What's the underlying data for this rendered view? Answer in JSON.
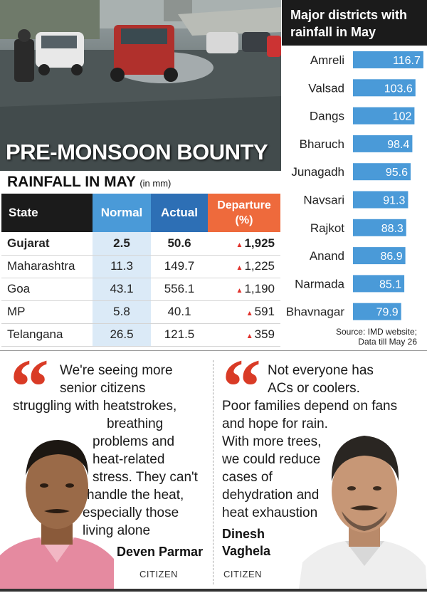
{
  "headline": "PRE-MONSOON BOUNTY",
  "table": {
    "title": "RAINFALL IN MAY",
    "unit": "(in mm)",
    "headers": {
      "state": "State",
      "normal": "Normal",
      "actual": "Actual",
      "departure_line1": "Departure",
      "departure_line2": "(%)"
    },
    "rows": [
      {
        "state": "Gujarat",
        "normal": "2.5",
        "actual": "50.6",
        "departure": "1,925"
      },
      {
        "state": "Maharashtra",
        "normal": "11.3",
        "actual": "149.7",
        "departure": "1,225"
      },
      {
        "state": "Goa",
        "normal": "43.1",
        "actual": "556.1",
        "departure": "1,190"
      },
      {
        "state": "MP",
        "normal": "5.8",
        "actual": "40.1",
        "departure": "591"
      },
      {
        "state": "Telangana",
        "normal": "26.5",
        "actual": "121.5",
        "departure": "359"
      }
    ]
  },
  "chart_data": {
    "type": "bar",
    "title": "Major districts with rainfall in May",
    "categories": [
      "Amreli",
      "Valsad",
      "Dangs",
      "Bharuch",
      "Junagadh",
      "Navsari",
      "Rajkot",
      "Anand",
      "Narmada",
      "Bhavnagar"
    ],
    "values": [
      116.7,
      103.6,
      102,
      98.4,
      95.6,
      91.3,
      88.3,
      86.9,
      85.1,
      79.9
    ],
    "value_labels": [
      "116.7",
      "103.6",
      "102",
      "98.4",
      "95.6",
      "91.3",
      "88.3",
      "86.9",
      "85.1",
      "79.9"
    ],
    "orientation": "horizontal",
    "bar_color": "#4a9ad8",
    "label_color": "#ffffff",
    "grid": false,
    "legend": "none"
  },
  "source_line1": "Source: IMD website;",
  "source_line2": "Data till May 26",
  "quotes": {
    "left": {
      "text_lines": [
        "We're seeing more",
        "senior citizens",
        "struggling with heatstrokes,",
        "breathing",
        "problems and",
        "heat-related",
        "stress. They can't",
        "handle the heat,",
        "especially those",
        "living alone"
      ],
      "name": "Deven Parmar",
      "role": "CITIZEN"
    },
    "right": {
      "text_lines": [
        "Not everyone has",
        "ACs or coolers.",
        "Poor families depend on fans",
        "and hope for rain.",
        "With more trees,",
        "we could reduce",
        "cases of",
        "dehydration and",
        "heat exhaustion"
      ],
      "name_line1": "Dinesh",
      "name_line2": "Vaghela",
      "role": "CITIZEN"
    }
  },
  "colors": {
    "accent_red": "#d93b26",
    "normal_blue": "#4a9ad8",
    "actual_blue": "#2d6fb5",
    "departure_orange": "#ee6a3c"
  }
}
